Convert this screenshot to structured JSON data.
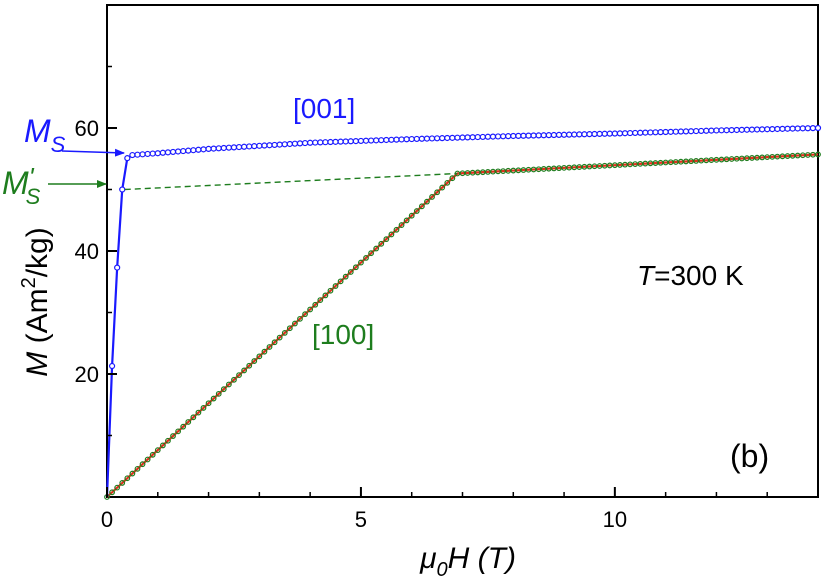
{
  "colors": {
    "series_001": "#1a1aff",
    "series_100_points": "#1e7d1e",
    "series_100_fit": "#e0301e",
    "ms_prime_line": "#1e7d1e",
    "axis": "#000000"
  },
  "chart_data": {
    "type": "line",
    "xlim": [
      0,
      14
    ],
    "ylim": [
      0,
      80
    ],
    "grid": false,
    "xticks": [
      0,
      5,
      10
    ],
    "xtick_labels": [
      "0",
      "5",
      "10"
    ],
    "yticks": [
      20,
      40,
      60
    ],
    "ytick_labels": [
      "20",
      "40",
      "60"
    ],
    "xlabel": {
      "sym": "μ",
      "sub": "0",
      "rest": "H (T)"
    },
    "ylabel": {
      "sym": "M",
      "rest1": " (Am",
      "sup": "2",
      "rest2": "/kg)"
    },
    "series": [
      {
        "name": "[001]",
        "color": "#1a1aff",
        "x": [
          0,
          0.1,
          0.2,
          0.3,
          0.4,
          0.5,
          1,
          2,
          4,
          6,
          8,
          10,
          12,
          14
        ],
        "y": [
          0,
          21.3,
          37.3,
          50.0,
          55.1,
          55.6,
          55.9,
          56.6,
          57.6,
          58.2,
          58.7,
          59.1,
          59.6,
          60.0
        ],
        "marker": "circle"
      },
      {
        "name": "[100]",
        "color": "#1e7d1e",
        "x": [
          0,
          6.9,
          14
        ],
        "y": [
          0,
          52.6,
          55.7
        ],
        "marker": "circle"
      },
      {
        "name": "fit",
        "color": "#e0301e",
        "x": [
          0,
          6.9,
          14
        ],
        "y": [
          0,
          52.6,
          55.7
        ],
        "marker": "none"
      }
    ],
    "ms_prime_line": {
      "x": [
        0.35,
        6.9
      ],
      "y": [
        50.0,
        52.6
      ]
    },
    "annotations": {
      "label_001": "[001]",
      "label_100": "[100]",
      "temperature": {
        "sym": "T",
        "rest": "=300 K"
      },
      "panel": "(b)",
      "ms": {
        "sym": "M",
        "sub": "S"
      },
      "ms_prime": {
        "sym": "M",
        "sup": "'",
        "sub": "S"
      }
    }
  }
}
